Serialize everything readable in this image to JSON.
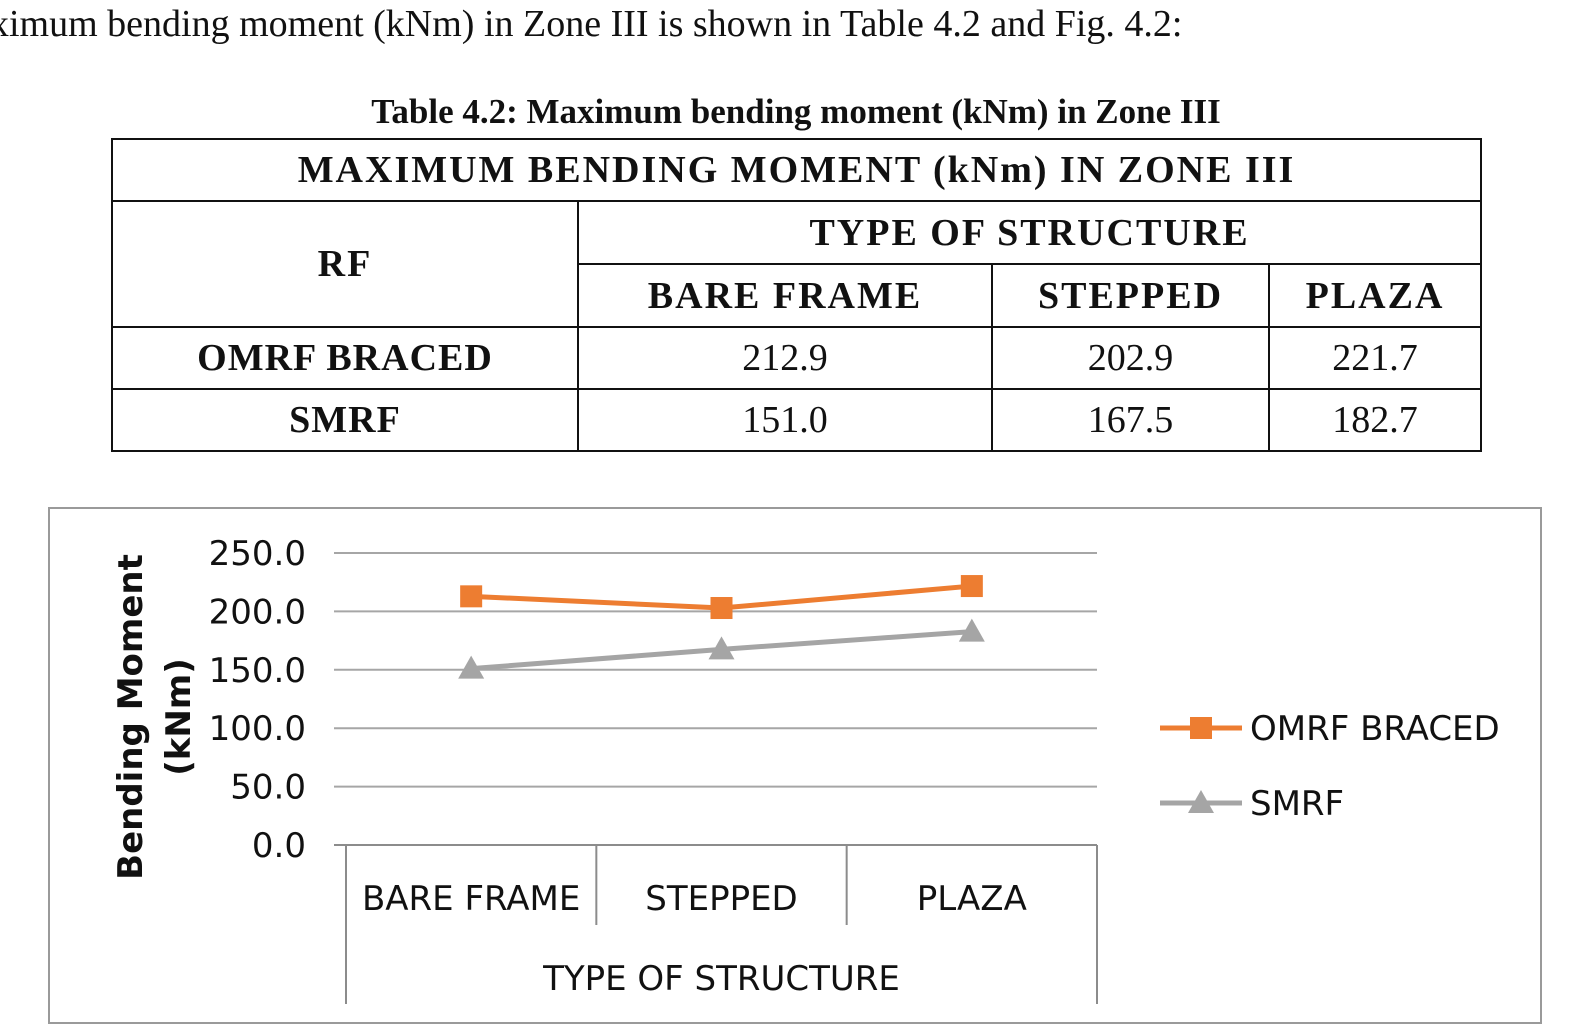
{
  "intro_text": "ximum bending moment (kNm) in Zone III is shown in Table 4.2 and Fig. 4.2:",
  "table": {
    "caption": "Table 4.2: Maximum bending moment (kNm) in Zone III",
    "title": "MAXIMUM BENDING MOMENT (kNm) IN ZONE III",
    "rf_label": "RF",
    "group_header": "TYPE OF STRUCTURE",
    "columns": [
      "BARE FRAME",
      "STEPPED",
      "PLAZA"
    ],
    "rows": [
      {
        "label": "OMRF BRACED",
        "values": [
          "212.9",
          "202.9",
          "221.7"
        ]
      },
      {
        "label": "SMRF",
        "values": [
          "151.0",
          "167.5",
          "182.7"
        ]
      }
    ]
  },
  "chart_data": {
    "type": "line",
    "categories": [
      "BARE FRAME",
      "STEPPED",
      "PLAZA"
    ],
    "series": [
      {
        "name": "OMRF BRACED",
        "values": [
          212.9,
          202.9,
          221.7
        ],
        "color": "#ED7D31",
        "marker": "square"
      },
      {
        "name": "SMRF",
        "values": [
          151.0,
          167.5,
          182.7
        ],
        "color": "#A5A5A5",
        "marker": "triangle"
      }
    ],
    "xlabel": "TYPE OF STRUCTURE",
    "ylabel": "Bending Moment (kNm)",
    "ylabel_lines": [
      "Bending Moment",
      "(kNm)"
    ],
    "ylim": [
      0,
      250
    ],
    "yticks": [
      "0.0",
      "50.0",
      "100.0",
      "150.0",
      "200.0",
      "250.0"
    ],
    "grid": true,
    "legend": "right"
  }
}
